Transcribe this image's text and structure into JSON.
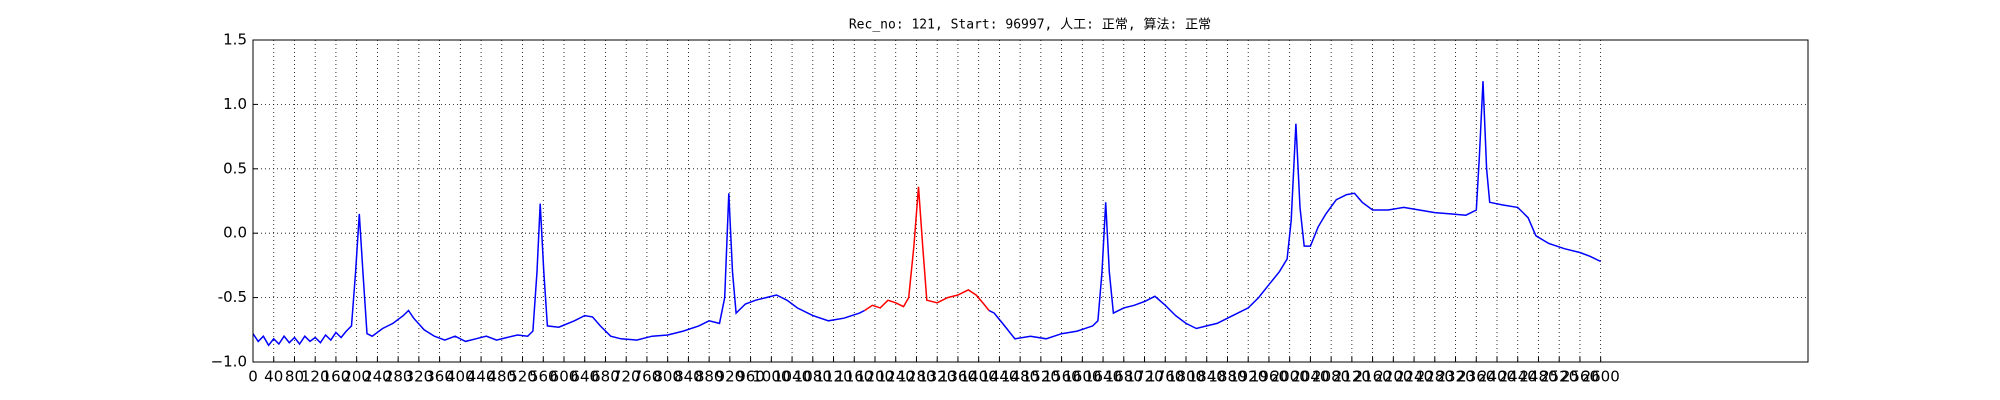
{
  "chart_data": {
    "type": "line",
    "title": "Rec_no: 121, Start: 96997, 人工: 正常, 算法: 正常",
    "xlim": [
      0,
      3000
    ],
    "xticks": [
      0,
      40,
      80,
      120,
      160,
      200,
      240,
      280,
      320,
      360,
      400,
      440,
      480,
      520,
      560,
      600,
      640,
      680,
      720,
      760,
      800,
      840,
      880,
      920,
      960,
      1000,
      1040,
      1080,
      1120,
      1160,
      1200,
      1240,
      1280,
      1320,
      1360,
      1400,
      1440,
      1480,
      1520,
      1560,
      1600,
      1640,
      1680,
      1720,
      1760,
      1800,
      1840,
      1880,
      1920,
      1960,
      2000,
      2040,
      2080,
      2120,
      2160,
      2200,
      2240,
      2280,
      2320,
      2360,
      2400,
      2440,
      2480,
      2520,
      2560,
      2600
    ],
    "ylim": [
      -1.0,
      1.5
    ],
    "yticks": [
      {
        "value": -1.0,
        "label": "−1.0"
      },
      -0.5,
      {
        "value": 0.0,
        "label": "0.0"
      },
      0.5,
      {
        "value": 1.0,
        "label": "1.0"
      },
      1.5
    ],
    "grid": true,
    "series": [
      {
        "color": "#0000ff",
        "x": [
          0,
          10,
          20,
          30,
          40,
          50,
          60,
          70,
          80,
          90,
          100,
          110,
          120,
          130,
          140,
          150,
          160,
          170,
          180,
          190,
          198,
          205,
          212,
          220,
          230,
          250,
          270,
          290,
          300,
          310,
          330,
          350,
          370,
          390,
          410,
          430,
          450,
          470,
          490,
          510,
          530,
          540,
          548,
          554,
          561,
          568,
          590,
          620,
          640,
          655,
          670,
          690,
          710,
          740,
          770,
          800,
          830,
          860,
          880,
          900,
          910,
          918,
          925,
          932,
          950,
          970,
          990,
          1010,
          1030,
          1050,
          1080,
          1110,
          1140,
          1170,
          1180,
          1300,
          1420,
          1430,
          1450,
          1470,
          1500,
          1530,
          1560,
          1590,
          1620,
          1630,
          1638,
          1645,
          1652,
          1660,
          1680,
          1700,
          1720,
          1740,
          1760,
          1780,
          1800,
          1820,
          1840,
          1860,
          1880,
          1900,
          1920,
          1940,
          1960,
          1980,
          1995,
          2003,
          2012,
          2020,
          2028,
          2040,
          2055,
          2070,
          2090,
          2110,
          2125,
          2140,
          2160,
          2190,
          2220,
          2250,
          2280,
          2310,
          2340,
          2360,
          2366,
          2373,
          2380,
          2386,
          2410,
          2440,
          2460,
          2475,
          2500,
          2530,
          2560,
          2580,
          2600
        ],
        "values": [
          -0.78,
          -0.84,
          -0.8,
          -0.87,
          -0.82,
          -0.86,
          -0.8,
          -0.85,
          -0.81,
          -0.86,
          -0.8,
          -0.84,
          -0.81,
          -0.85,
          -0.79,
          -0.83,
          -0.77,
          -0.81,
          -0.76,
          -0.72,
          -0.3,
          0.15,
          -0.3,
          -0.78,
          -0.8,
          -0.74,
          -0.7,
          -0.64,
          -0.6,
          -0.66,
          -0.75,
          -0.8,
          -0.83,
          -0.8,
          -0.84,
          -0.82,
          -0.8,
          -0.83,
          -0.81,
          -0.79,
          -0.8,
          -0.76,
          -0.3,
          0.23,
          -0.3,
          -0.72,
          -0.73,
          -0.68,
          -0.64,
          -0.65,
          -0.72,
          -0.8,
          -0.82,
          -0.83,
          -0.8,
          -0.79,
          -0.76,
          -0.72,
          -0.68,
          -0.7,
          -0.5,
          0.31,
          -0.3,
          -0.62,
          -0.55,
          -0.52,
          -0.5,
          -0.48,
          -0.52,
          -0.58,
          -0.64,
          -0.68,
          -0.66,
          -0.62,
          -0.6,
          null,
          -0.6,
          -0.62,
          -0.72,
          -0.82,
          -0.8,
          -0.82,
          -0.78,
          -0.76,
          -0.72,
          -0.68,
          -0.3,
          0.24,
          -0.3,
          -0.62,
          -0.58,
          -0.56,
          -0.53,
          -0.49,
          -0.56,
          -0.64,
          -0.7,
          -0.74,
          -0.72,
          -0.7,
          -0.66,
          -0.62,
          -0.58,
          -0.5,
          -0.4,
          -0.3,
          -0.2,
          0.1,
          0.85,
          0.2,
          -0.1,
          -0.1,
          0.05,
          0.15,
          0.26,
          0.3,
          0.31,
          0.24,
          0.18,
          0.18,
          0.2,
          0.18,
          0.16,
          0.15,
          0.14,
          0.18,
          0.6,
          1.18,
          0.5,
          0.24,
          0.22,
          0.2,
          0.12,
          -0.02,
          -0.08,
          -0.12,
          -0.15,
          -0.18,
          -0.22
        ]
      },
      {
        "color": "#ff0000",
        "x": [
          1180,
          1195,
          1210,
          1225,
          1240,
          1255,
          1265,
          1275,
          1284,
          1292,
          1300,
          1320,
          1340,
          1360,
          1380,
          1395,
          1410,
          1420
        ],
        "values": [
          -0.6,
          -0.56,
          -0.58,
          -0.52,
          -0.54,
          -0.57,
          -0.5,
          -0.1,
          0.36,
          -0.1,
          -0.52,
          -0.54,
          -0.5,
          -0.48,
          -0.44,
          -0.48,
          -0.55,
          -0.6
        ]
      }
    ]
  }
}
